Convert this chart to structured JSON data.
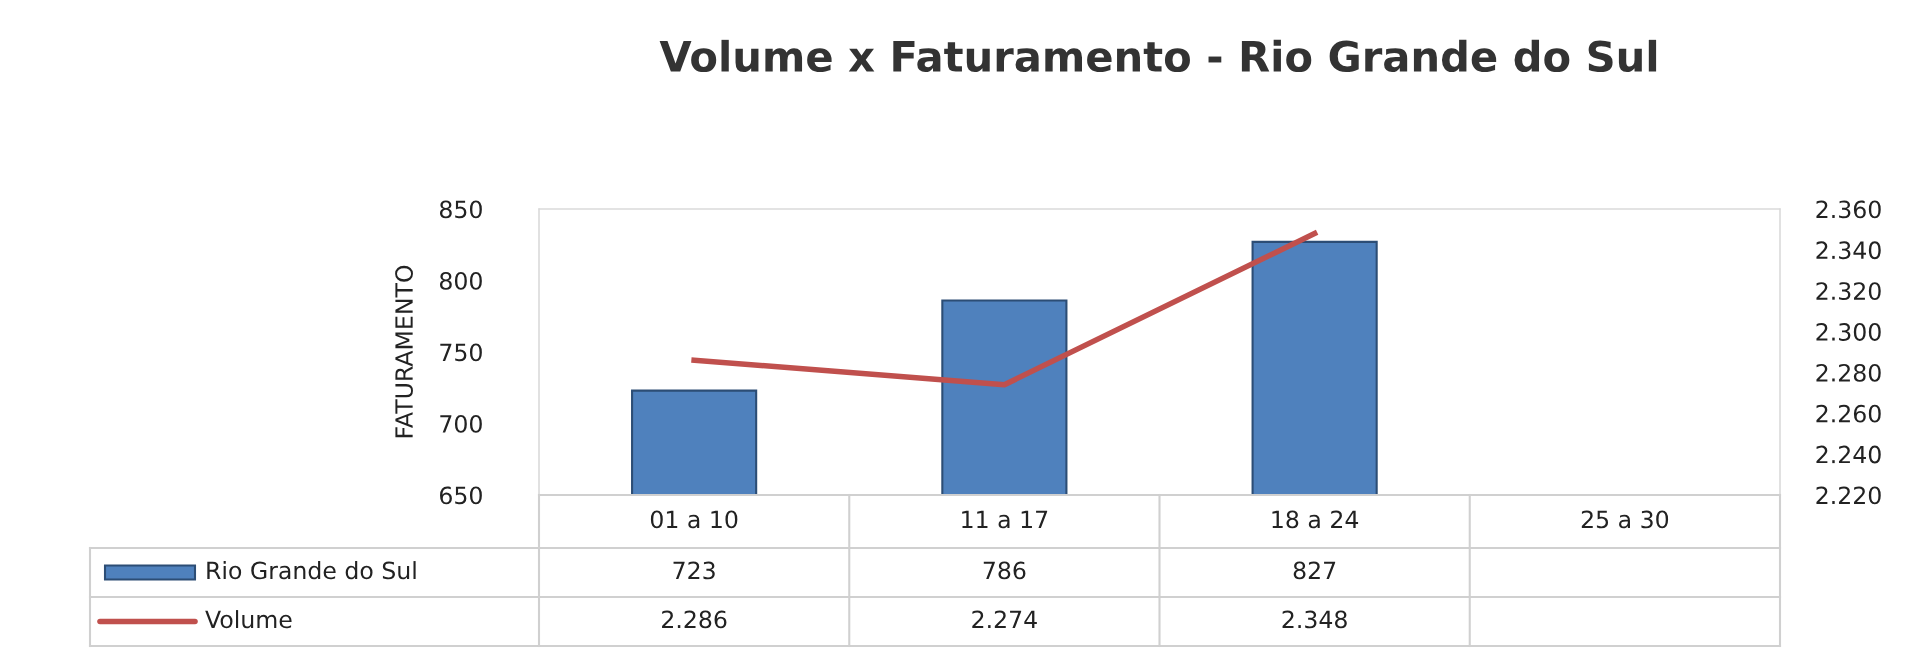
{
  "chart_data": {
    "type": "bar",
    "title": "Volume x Faturamento - Rio Grande do Sul",
    "ylabel": "FATURAMENTO",
    "categories": [
      "01 a 10",
      "11 a 17",
      "18 a 24",
      "25 a 30"
    ],
    "series": [
      {
        "name": "Rio Grande do Sul",
        "color": "#4f81bd",
        "values": [
          723,
          786,
          827,
          null
        ]
      },
      {
        "name": "Volume",
        "type": "line",
        "axis": "y2",
        "color": "#c0504d",
        "values": [
          2.286,
          2.274,
          2.348,
          null
        ]
      }
    ],
    "ylim": [
      650,
      850
    ],
    "yticks": [
      650,
      700,
      750,
      800,
      850
    ],
    "y2lim": [
      2.22,
      2.36
    ],
    "y2ticks": [
      {
        "value": 2.22,
        "label": "2.220"
      },
      {
        "value": 2.24,
        "label": "2.240"
      },
      {
        "value": 2.26,
        "label": "2.260"
      },
      {
        "value": 2.28,
        "label": "2.280"
      },
      {
        "value": 2.3,
        "label": "2.300"
      },
      {
        "value": 2.32,
        "label": "2.320"
      },
      {
        "value": 2.34,
        "label": "2.340"
      },
      {
        "value": 2.36,
        "label": "2.360"
      }
    ],
    "data_labels": true,
    "legend": "bottom",
    "grid": false
  }
}
